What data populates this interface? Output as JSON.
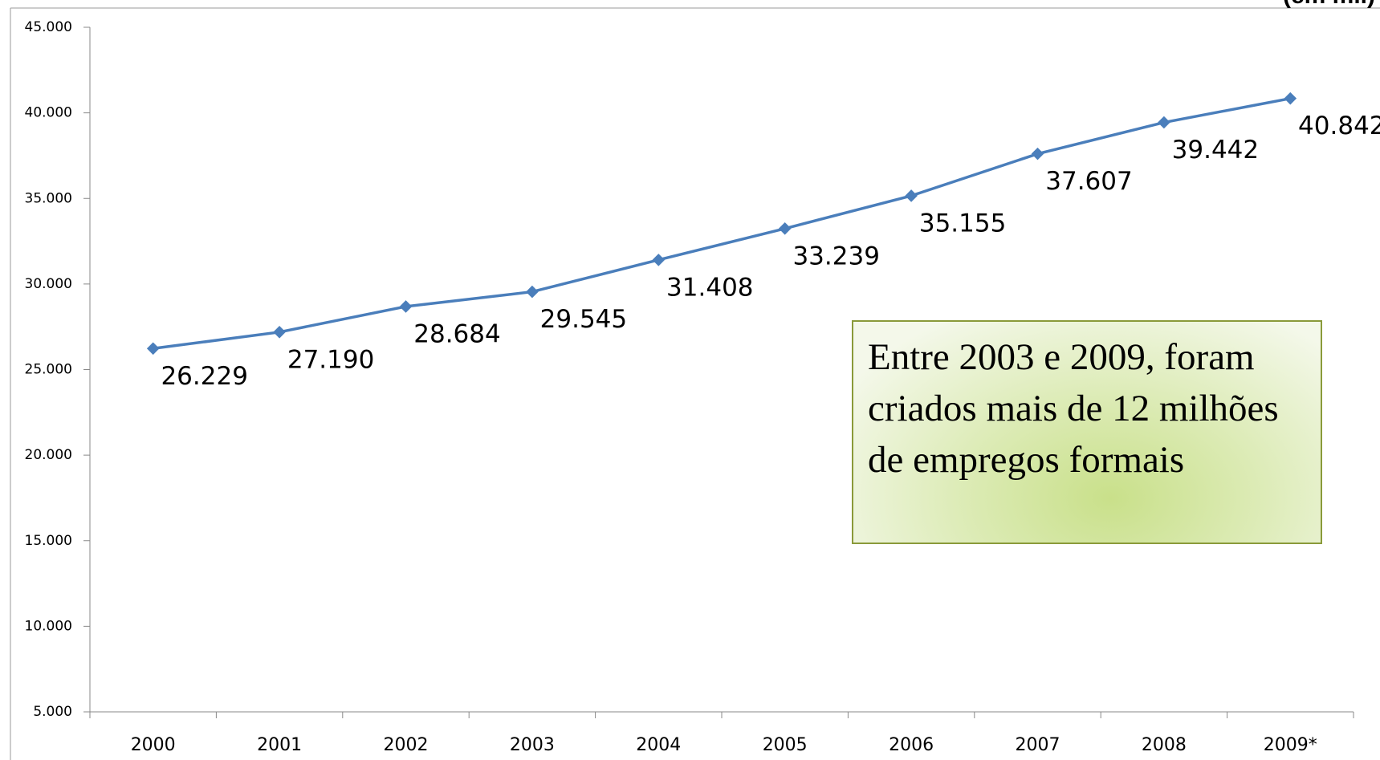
{
  "chart_data": {
    "type": "line",
    "subtitle": "(em mil)",
    "categories": [
      "2000",
      "2001",
      "2002",
      "2003",
      "2004",
      "2005",
      "2006",
      "2007",
      "2008",
      "2009*"
    ],
    "series": [
      {
        "name": "Empregos formais",
        "color": "#4a7ebb",
        "values": [
          26229,
          27190,
          28684,
          29545,
          31408,
          33239,
          35155,
          37607,
          39442,
          40842
        ],
        "value_labels": [
          "26.229",
          "27.190",
          "28.684",
          "29.545",
          "31.408",
          "33.239",
          "35.155",
          "37.607",
          "39.442",
          "40.842"
        ]
      }
    ],
    "ylim": [
      5000,
      45000
    ],
    "yticks": [
      {
        "value": 5000,
        "label": "5.000"
      },
      {
        "value": 10000,
        "label": "10.000"
      },
      {
        "value": 15000,
        "label": "15.000"
      },
      {
        "value": 20000,
        "label": "20.000"
      },
      {
        "value": 25000,
        "label": "25.000"
      },
      {
        "value": 30000,
        "label": "30.000"
      },
      {
        "value": 35000,
        "label": "35.000"
      },
      {
        "value": 40000,
        "label": "40.000"
      },
      {
        "value": 45000,
        "label": "45.000"
      }
    ],
    "annotation": "Entre 2003 e 2009, foram criados mais de 12 milhões de empregos formais"
  }
}
